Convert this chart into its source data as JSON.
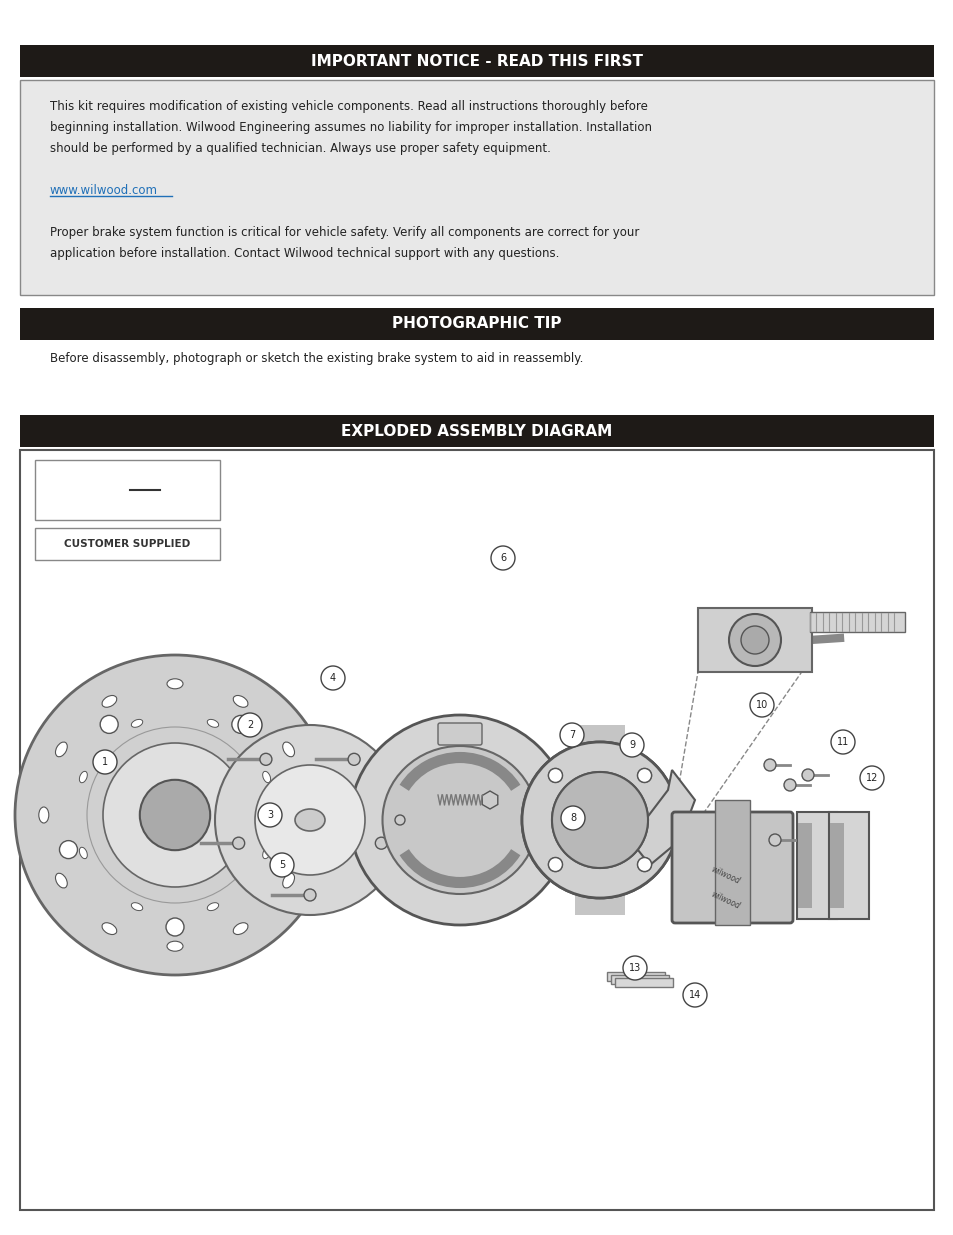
{
  "page_bg": "#ffffff",
  "dark_bar_color": "#1e1a17",
  "light_box_bg": "#e8e8e8",
  "diagram_box_bg": "#ffffff",
  "blue_link_color": "#2070b8",
  "header1_text": "IMPORTANT NOTICE - READ THIS FIRST",
  "header2_text": "PHOTOGRAPHIC TIP",
  "header3_text": "EXPLODED ASSEMBLY DIAGRAM",
  "header_text_color": "#ffffff",
  "header_fontsize": 11,
  "body_text_color": "#222222",
  "body_fontsize": 8.5,
  "notice_text_lines": [
    "This kit requires modification of existing vehicle components. Read all instructions thoroughly before",
    "beginning installation. Wilwood Engineering assumes no liability for improper installation. Installation",
    "should be performed by a qualified technician. Always use proper safety equipment.",
    "",
    "www.wilwood.com",
    "",
    "Proper brake system function is critical for vehicle safety. Verify all components are correct for your",
    "application before installation. Contact Wilwood technical support with any questions."
  ],
  "photo_tip_text": "Before disassembly, photograph or sketch the existing brake system to aid in reassembly.",
  "legend_box2_text": "CUSTOMER SUPPLIED"
}
